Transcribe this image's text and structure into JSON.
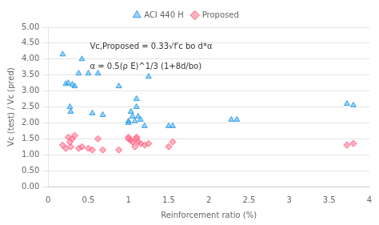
{
  "chart_data": {
    "type": "scatter",
    "x_label": "Reinforcement ratio (%)",
    "y_label": "Vc (test) / Vc (pred)",
    "xlim": [
      0,
      4
    ],
    "ylim": [
      0.0,
      5.0
    ],
    "xticks": [
      0,
      0.5,
      1,
      1.5,
      2,
      2.5,
      3,
      3.5,
      4
    ],
    "yticks": [
      {
        "value": 0.0,
        "label": "0.00"
      },
      {
        "value": 0.5,
        "label": "0.50"
      },
      {
        "value": 1.0,
        "label": "1.00"
      },
      {
        "value": 1.5,
        "label": "1.50"
      },
      {
        "value": 2.0,
        "label": "2.00"
      },
      {
        "value": 2.5,
        "label": "2.50"
      },
      {
        "value": 3.0,
        "label": "3.00"
      },
      {
        "value": 3.5,
        "label": "3.50"
      },
      {
        "value": 4.0,
        "label": "4.00"
      },
      {
        "value": 4.5,
        "label": "4.50"
      },
      {
        "value": 5.0,
        "label": "5.00"
      }
    ],
    "grid": "y",
    "legend": "top",
    "series": [
      {
        "name": "ACI 440 H",
        "marker": "triangle",
        "x": [
          0.18,
          0.22,
          0.25,
          0.27,
          0.28,
          0.3,
          0.33,
          0.38,
          0.42,
          0.5,
          0.55,
          0.62,
          0.68,
          0.88,
          1.0,
          1.0,
          1.03,
          1.05,
          1.08,
          1.1,
          1.1,
          1.12,
          1.15,
          1.2,
          1.25,
          1.5,
          1.55,
          2.28,
          2.35,
          3.72,
          3.8
        ],
        "values": [
          4.15,
          3.22,
          3.25,
          2.5,
          2.35,
          3.2,
          3.15,
          3.55,
          4.0,
          3.55,
          2.3,
          3.55,
          2.25,
          3.15,
          2.05,
          2.0,
          2.35,
          2.2,
          2.05,
          2.75,
          2.5,
          2.2,
          2.1,
          1.9,
          3.45,
          1.9,
          1.9,
          2.1,
          2.1,
          2.6,
          2.55
        ]
      },
      {
        "name": "Proposed",
        "marker": "diamond",
        "x": [
          0.18,
          0.22,
          0.25,
          0.27,
          0.28,
          0.3,
          0.33,
          0.38,
          0.42,
          0.5,
          0.55,
          0.62,
          0.68,
          0.88,
          1.0,
          1.0,
          1.03,
          1.05,
          1.08,
          1.1,
          1.1,
          1.12,
          1.15,
          1.2,
          1.25,
          1.5,
          1.55,
          3.72,
          3.8
        ],
        "values": [
          1.3,
          1.2,
          1.55,
          1.4,
          1.25,
          1.5,
          1.6,
          1.2,
          1.25,
          1.2,
          1.15,
          1.5,
          1.15,
          1.15,
          1.5,
          1.55,
          1.45,
          1.4,
          1.25,
          1.55,
          1.5,
          1.4,
          1.35,
          1.3,
          1.35,
          1.25,
          1.4,
          1.3,
          1.35
        ]
      }
    ],
    "annotations": [
      {
        "text": "Vc,Proposed = 0.33√f′c bo d*α",
        "x": 0.52,
        "y": 4.38
      },
      {
        "text": "α = 0.5(ρ E)^1/3 (1+8d/bo)",
        "x": 0.52,
        "y": 3.75
      }
    ]
  }
}
